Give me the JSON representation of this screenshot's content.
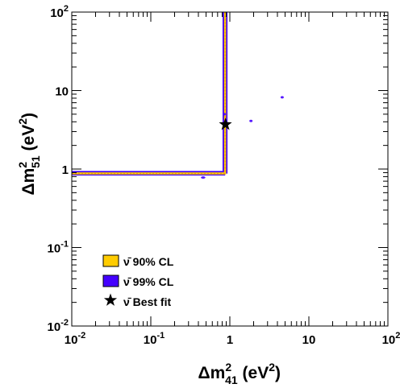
{
  "chart_data": {
    "type": "contour",
    "xlabel": {
      "main": "Δm",
      "sup": "2",
      "sub": "41",
      "unit_open": " (eV",
      "unit_sup": "2",
      "unit_close": ")"
    },
    "ylabel": {
      "main": "Δm",
      "sup": "2",
      "sub": "51",
      "unit_open": " (eV",
      "unit_sup": "2",
      "unit_close": ")"
    },
    "xscale": "log",
    "yscale": "log",
    "xlim": [
      0.01,
      100
    ],
    "ylim": [
      0.01,
      100
    ],
    "x_ticks": [
      {
        "value": 0.01,
        "base": "10",
        "exp": "-2"
      },
      {
        "value": 0.1,
        "base": "10",
        "exp": "-1"
      },
      {
        "value": 1,
        "text": "1"
      },
      {
        "value": 10,
        "text": "10"
      },
      {
        "value": 100,
        "base": "10",
        "exp": "2"
      }
    ],
    "y_ticks": [
      {
        "value": 0.01,
        "base": "10",
        "exp": "-2"
      },
      {
        "value": 0.1,
        "base": "10",
        "exp": "-1"
      },
      {
        "value": 1,
        "text": "1"
      },
      {
        "value": 10,
        "text": "10"
      },
      {
        "value": 100,
        "base": "10",
        "exp": "2"
      }
    ],
    "grid": false,
    "legend_position": "bottom-left",
    "colors": {
      "cl90": "#ffcc00",
      "cl99": "#4400ff",
      "best_fit": "#000000",
      "boundary": "#e88a00"
    },
    "series": [
      {
        "name": "ν̄ 90% CL",
        "kind": "region-boundary",
        "paths": [
          [
            [
              0.01,
              0.88
            ],
            [
              0.87,
              0.88
            ],
            [
              0.87,
              100
            ]
          ]
        ]
      },
      {
        "name": "ν̄ 99% CL",
        "kind": "region-boundary",
        "paths": [
          [
            [
              0.01,
              0.86
            ],
            [
              0.84,
              0.86
            ],
            [
              0.84,
              100
            ]
          ],
          [
            [
              0.01,
              0.91
            ],
            [
              0.9,
              0.91
            ],
            [
              0.9,
              100
            ]
          ]
        ],
        "islands": [
          {
            "x": 1.85,
            "y": 4.1,
            "w": 0.09,
            "h": 0.08
          },
          {
            "x": 4.6,
            "y": 8.2,
            "w": 0.06,
            "h": 0.03
          },
          {
            "x": 0.46,
            "y": 0.78,
            "w": 0.06,
            "h": 0.05
          },
          {
            "x": 0.85,
            "y": 5.0,
            "w": 0.04,
            "h": 0.1
          }
        ]
      },
      {
        "name": "ν̄ Best fit",
        "kind": "marker",
        "points": [
          [
            0.88,
            3.7
          ]
        ]
      }
    ]
  }
}
